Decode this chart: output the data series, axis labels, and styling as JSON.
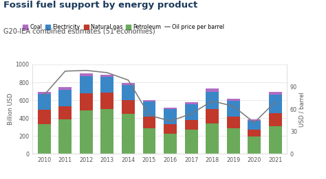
{
  "title": "Fossil fuel support by energy product",
  "subtitle": "G20-IEA combined estimates (51 economies)",
  "years": [
    2010,
    2011,
    2012,
    2013,
    2014,
    2015,
    2016,
    2017,
    2018,
    2019,
    2020,
    2021
  ],
  "petroleum": [
    330,
    390,
    490,
    500,
    450,
    290,
    225,
    275,
    340,
    290,
    195,
    310
  ],
  "natural_gas": [
    165,
    145,
    185,
    185,
    155,
    130,
    110,
    105,
    160,
    130,
    75,
    145
  ],
  "electricity": [
    175,
    185,
    195,
    175,
    165,
    165,
    165,
    175,
    195,
    175,
    100,
    205
  ],
  "coal": [
    25,
    25,
    30,
    25,
    25,
    20,
    20,
    25,
    35,
    25,
    20,
    35
  ],
  "oil_price": [
    79,
    111,
    112,
    109,
    99,
    52,
    44,
    54,
    71,
    64,
    42,
    70
  ],
  "colors": {
    "petroleum": "#6aaa5a",
    "natural_gas": "#c0392b",
    "electricity": "#3a87c8",
    "coal": "#b06cc4"
  },
  "oil_line_color": "#777777",
  "ylim_left": [
    0,
    1000
  ],
  "ylim_right": [
    0,
    120
  ],
  "yticks_left": [
    0,
    200,
    400,
    600,
    800,
    1000
  ],
  "yticks_right": [
    0,
    30,
    60,
    90
  ],
  "ylabel_left": "Billion USD",
  "ylabel_right": "USD / barrel",
  "background_color": "#ffffff",
  "title_color": "#1a3a5c",
  "subtitle_color": "#444444",
  "tick_color": "#555555",
  "grid_color": "#e0e0e0"
}
